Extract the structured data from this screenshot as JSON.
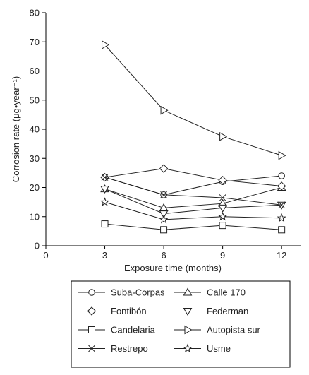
{
  "chart_data": {
    "type": "line",
    "xlabel": "Exposure time (months)",
    "ylabel": "Corrosion rate (μg•year⁻¹)",
    "x": [
      3,
      6,
      9,
      12
    ],
    "x_ticks": [
      "0",
      "3",
      "6",
      "9",
      "12"
    ],
    "y_ticks": [
      "0",
      "10",
      "20",
      "30",
      "40",
      "50",
      "60",
      "70",
      "80"
    ],
    "xlim": [
      0,
      13
    ],
    "ylim": [
      0,
      80
    ],
    "grid": false,
    "legend_position": "bottom",
    "series": [
      {
        "name": "Suba-Corpas",
        "marker": "circle",
        "values": [
          23.5,
          17.5,
          22.0,
          24.0
        ]
      },
      {
        "name": "Calle 170",
        "marker": "triangle-up",
        "values": [
          19.5,
          13.0,
          14.5,
          20.0
        ]
      },
      {
        "name": "Fontibón",
        "marker": "diamond",
        "values": [
          23.5,
          26.5,
          22.5,
          20.5
        ]
      },
      {
        "name": "Federman",
        "marker": "triangle-down",
        "values": [
          19.5,
          11.0,
          13.0,
          14.0
        ]
      },
      {
        "name": "Candelaria",
        "marker": "square",
        "values": [
          7.5,
          5.5,
          7.0,
          5.5
        ]
      },
      {
        "name": "Autopista sur",
        "marker": "triangle-right",
        "values": [
          69.0,
          46.5,
          37.5,
          31.0
        ]
      },
      {
        "name": "Restrepo",
        "marker": "x",
        "values": [
          23.5,
          17.5,
          16.5,
          14.0
        ]
      },
      {
        "name": "Usme",
        "marker": "star",
        "values": [
          15.0,
          9.0,
          10.0,
          9.5
        ]
      }
    ]
  }
}
